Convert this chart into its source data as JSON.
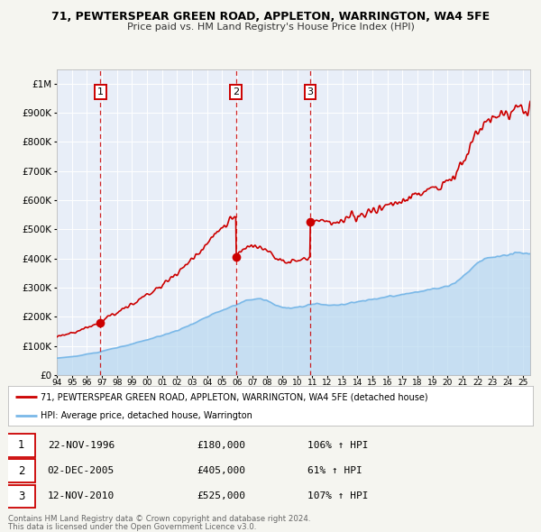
{
  "title_line1": "71, PEWTERSPEAR GREEN ROAD, APPLETON, WARRINGTON, WA4 5FE",
  "title_line2": "Price paid vs. HM Land Registry's House Price Index (HPI)",
  "hpi_color": "#7ab8e8",
  "hpi_fill_color": "#b8d8f0",
  "price_color": "#cc0000",
  "bg_color": "#f5f5f0",
  "plot_bg": "#e8eef8",
  "hatch_bg": "#dde4ee",
  "grid_color": "#ffffff",
  "transactions": [
    {
      "label": 1,
      "year": 1996.9,
      "price": 180000,
      "date": "22-NOV-1996",
      "pct": "106%",
      "dir": "↑"
    },
    {
      "label": 2,
      "year": 2005.92,
      "price": 405000,
      "date": "02-DEC-2005",
      "pct": "61%",
      "dir": "↑"
    },
    {
      "label": 3,
      "year": 2010.87,
      "price": 525000,
      "date": "12-NOV-2010",
      "pct": "107%",
      "dir": "↑"
    }
  ],
  "legend_label1": "71, PEWTERSPEAR GREEN ROAD, APPLETON, WARRINGTON, WA4 5FE (detached house)",
  "legend_label2": "HPI: Average price, detached house, Warrington",
  "footer1": "Contains HM Land Registry data © Crown copyright and database right 2024.",
  "footer2": "This data is licensed under the Open Government Licence v3.0.",
  "ylim_max": 1050000,
  "xmin": 1994.0,
  "xmax": 2025.5,
  "hpi_anchor_years": [
    1994.0,
    1994.5,
    1995.0,
    1995.5,
    1996.0,
    1996.5,
    1996.9,
    1997.0,
    1997.5,
    1998.0,
    1998.5,
    1999.0,
    1999.5,
    2000.0,
    2000.5,
    2001.0,
    2001.5,
    2002.0,
    2002.5,
    2003.0,
    2003.5,
    2004.0,
    2004.5,
    2005.0,
    2005.5,
    2005.92,
    2006.0,
    2006.5,
    2007.0,
    2007.5,
    2008.0,
    2008.5,
    2009.0,
    2009.5,
    2010.0,
    2010.5,
    2010.87,
    2011.0,
    2011.5,
    2012.0,
    2012.5,
    2013.0,
    2013.5,
    2014.0,
    2014.5,
    2015.0,
    2015.5,
    2016.0,
    2016.5,
    2017.0,
    2017.5,
    2018.0,
    2018.5,
    2019.0,
    2019.5,
    2020.0,
    2020.5,
    2021.0,
    2021.5,
    2022.0,
    2022.5,
    2023.0,
    2023.5,
    2024.0,
    2024.5
  ],
  "hpi_anchor_vals": [
    58000,
    60000,
    63000,
    67000,
    72000,
    76000,
    79000,
    82000,
    88000,
    94000,
    100000,
    107000,
    114000,
    121000,
    128000,
    136000,
    144000,
    153000,
    163000,
    175000,
    188000,
    200000,
    213000,
    223000,
    233000,
    239000,
    243000,
    253000,
    260000,
    262000,
    255000,
    242000,
    232000,
    228000,
    232000,
    238000,
    242000,
    244000,
    244000,
    241000,
    240000,
    242000,
    246000,
    252000,
    256000,
    260000,
    264000,
    268000,
    272000,
    277000,
    281000,
    286000,
    290000,
    295000,
    300000,
    305000,
    316000,
    338000,
    360000,
    385000,
    400000,
    405000,
    408000,
    412000,
    418000
  ]
}
